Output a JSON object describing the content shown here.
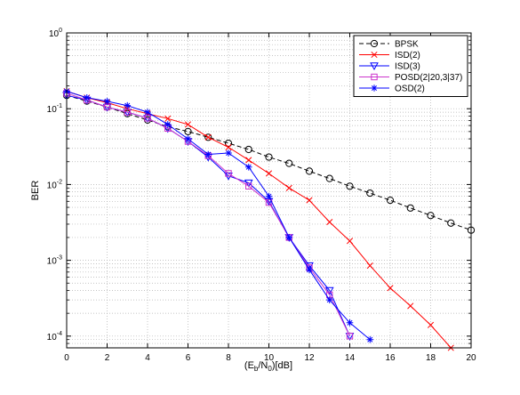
{
  "chart_data": {
    "type": "line",
    "xlabel": "(E_b/N_0)[dB]",
    "xlabel_parts": {
      "prefix": "(E",
      "sub1": "b",
      "mid": "/N",
      "sub2": "0",
      "suffix": ")[dB]"
    },
    "ylabel": "BER",
    "xlim": [
      0,
      20
    ],
    "ylim": [
      7e-05,
      1
    ],
    "y_scale": "log",
    "grid": true,
    "legend_position": "top-right",
    "x_ticks": [
      "0",
      "2",
      "4",
      "6",
      "8",
      "10",
      "12",
      "14",
      "16",
      "18",
      "20"
    ],
    "y_ticks": [
      {
        "base": "10",
        "exp": "0",
        "value": 1
      },
      {
        "base": "10",
        "exp": "-1",
        "value": 0.1
      },
      {
        "base": "10",
        "exp": "-2",
        "value": 0.01
      },
      {
        "base": "10",
        "exp": "-3",
        "value": 0.001
      },
      {
        "base": "10",
        "exp": "-4",
        "value": 0.0001
      }
    ],
    "series": [
      {
        "name": "BPSK",
        "color": "#000000",
        "dash": "dashed",
        "marker": "circle",
        "x": [
          0,
          1,
          2,
          3,
          4,
          5,
          6,
          7,
          8,
          9,
          10,
          11,
          12,
          13,
          14,
          15,
          16,
          17,
          18,
          19,
          20
        ],
        "y": [
          0.15,
          0.126,
          0.105,
          0.086,
          0.071,
          0.058,
          0.05,
          0.042,
          0.035,
          0.029,
          0.023,
          0.019,
          0.015,
          0.012,
          0.0095,
          0.0077,
          0.0062,
          0.0049,
          0.0039,
          0.0031,
          0.0025
        ]
      },
      {
        "name": "ISD(2)",
        "color": "#ff0000",
        "dash": "solid",
        "marker": "x",
        "x": [
          0,
          1,
          2,
          3,
          4,
          5,
          6,
          7,
          8,
          9,
          10,
          11,
          12,
          13,
          14,
          15,
          16,
          17,
          18,
          19
        ],
        "y": [
          0.17,
          0.14,
          0.12,
          0.1,
          0.086,
          0.074,
          0.062,
          0.042,
          0.031,
          0.021,
          0.014,
          0.009,
          0.0062,
          0.0032,
          0.0018,
          0.00085,
          0.00043,
          0.00025,
          0.00014,
          7e-05
        ]
      },
      {
        "name": "ISD(3)",
        "color": "#0000ff",
        "dash": "solid",
        "marker": "triangle-down",
        "x": [
          0,
          1,
          2,
          3,
          4,
          5,
          6,
          7,
          8,
          9,
          10,
          11,
          12,
          13,
          14
        ],
        "y": [
          0.15,
          0.13,
          0.105,
          0.09,
          0.075,
          0.055,
          0.037,
          0.023,
          0.013,
          0.0105,
          0.006,
          0.002,
          0.00085,
          0.0004,
          0.0001
        ]
      },
      {
        "name": "POSD(2|20,3|37)",
        "color": "#cc33cc",
        "dash": "solid",
        "marker": "square",
        "x": [
          0,
          1,
          2,
          3,
          4,
          5,
          6,
          7,
          8,
          9,
          10,
          11,
          12,
          13,
          14
        ],
        "y": [
          0.16,
          0.13,
          0.105,
          0.09,
          0.075,
          0.055,
          0.037,
          0.024,
          0.014,
          0.0095,
          0.0058,
          0.002,
          0.0008,
          0.00035,
          0.0001
        ]
      },
      {
        "name": "OSD(2)",
        "color": "#0000ff",
        "dash": "solid",
        "marker": "asterisk",
        "x": [
          0,
          1,
          2,
          3,
          4,
          5,
          6,
          7,
          8,
          9,
          10,
          11,
          12,
          13,
          14,
          15
        ],
        "y": [
          0.17,
          0.14,
          0.125,
          0.11,
          0.09,
          0.062,
          0.04,
          0.025,
          0.026,
          0.017,
          0.007,
          0.002,
          0.00075,
          0.0003,
          0.00015,
          9e-05
        ]
      }
    ]
  }
}
